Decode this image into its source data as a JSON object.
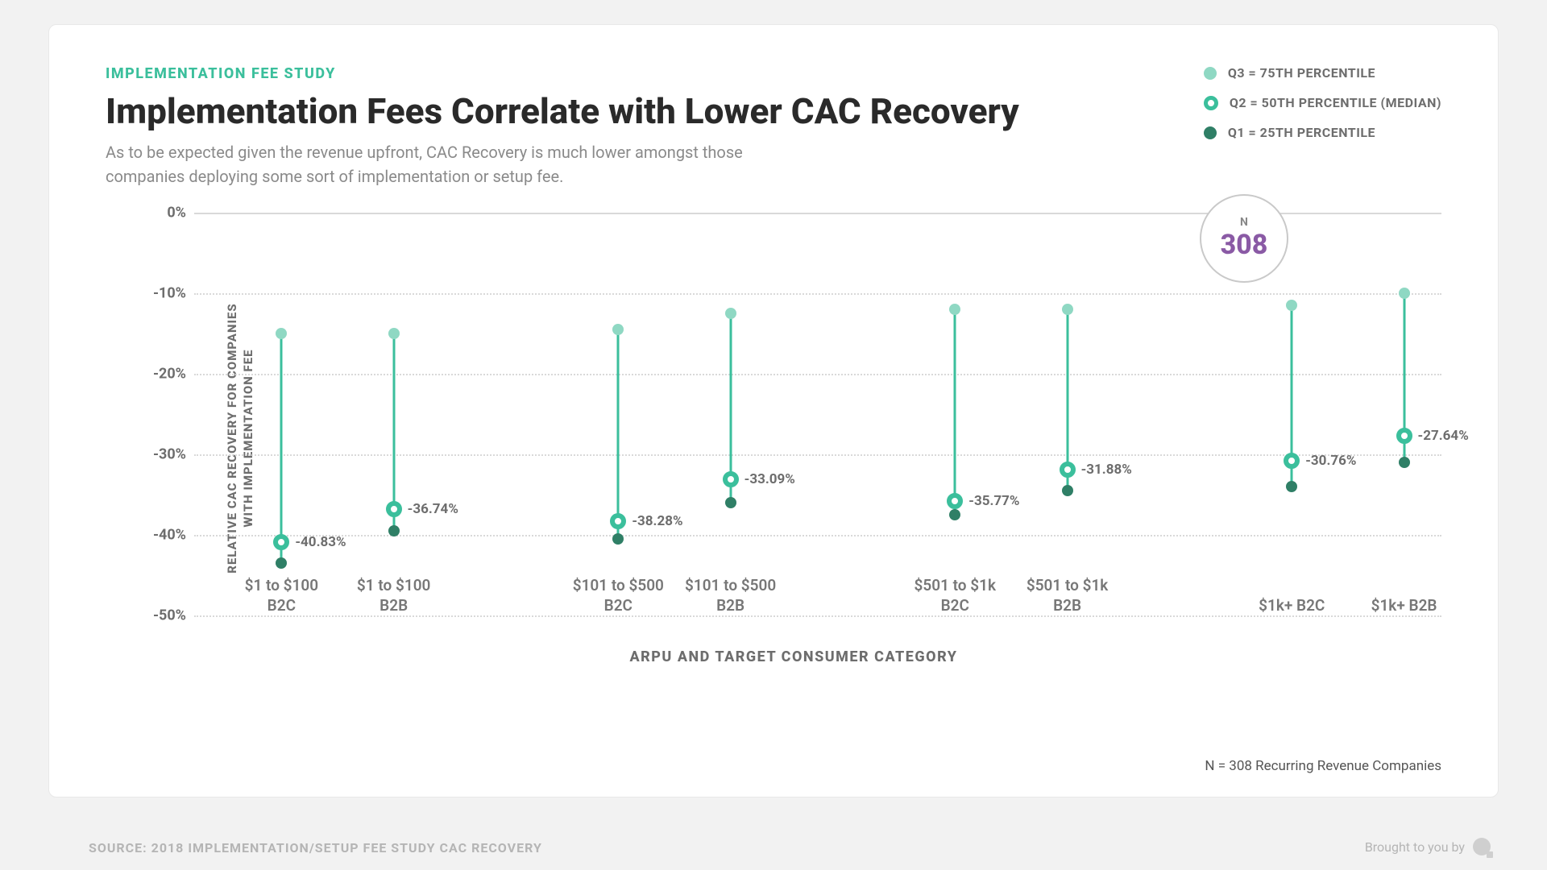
{
  "eyebrow": "IMPLEMENTATION FEE STUDY",
  "title": "Implementation Fees Correlate with Lower CAC Recovery",
  "subtitle": "As to be expected given the revenue upfront, CAC Recovery is much lower amongst those companies deploying some sort of implementation or setup fee.",
  "legend": {
    "q3": "Q3 = 75TH PERCENTILE",
    "q2": "Q2 = 50TH PERCENTILE (MEDIAN)",
    "q1": "Q1 = 25TH PERCENTILE"
  },
  "n_badge": {
    "label": "N",
    "value": "308"
  },
  "footnote": "N = 308 Recurring Revenue Companies",
  "source": "SOURCE: 2018 IMPLEMENTATION/SETUP FEE STUDY CAC RECOVERY",
  "brought": "Brought to you by",
  "chart": {
    "type": "range-dot",
    "yaxis_label_line1": "RELATIVE CAC RECOVERY FOR COMPANIES",
    "yaxis_label_line2": "WITH IMPLEMENTATION FEE",
    "xaxis_label": "ARPU AND TARGET CONSUMER CATEGORY",
    "ylim": [
      -50,
      0
    ],
    "yticks": [
      0,
      -10,
      -20,
      -30,
      -40,
      -50
    ],
    "ytick_labels": [
      "0%",
      "-10%",
      "-20%",
      "-30%",
      "-40%",
      "-50%"
    ],
    "grid_color": "#d9d9d9",
    "line_color": "#3bbf9c",
    "q3_color": "#8fd8c3",
    "q2_ring_color": "#3bbf9c",
    "q1_color": "#2f7f66",
    "background_color": "#ffffff",
    "group_gap_after": [
      1,
      3,
      5
    ],
    "series": [
      {
        "cat_line1": "$1 to $100",
        "cat_line2": "B2C",
        "q3": -15.0,
        "q2": -40.83,
        "q1": -43.5,
        "label": "-40.83%",
        "xpos": 7
      },
      {
        "cat_line1": "$1 to $100",
        "cat_line2": "B2B",
        "q3": -15.0,
        "q2": -36.74,
        "q1": -39.5,
        "label": "-36.74%",
        "xpos": 16
      },
      {
        "cat_line1": "$101 to $500",
        "cat_line2": "B2C",
        "q3": -14.5,
        "q2": -38.28,
        "q1": -40.5,
        "label": "-38.28%",
        "xpos": 34
      },
      {
        "cat_line1": "$101 to $500",
        "cat_line2": "B2B",
        "q3": -12.5,
        "q2": -33.09,
        "q1": -36.0,
        "label": "-33.09%",
        "xpos": 43
      },
      {
        "cat_line1": "$501 to $1k",
        "cat_line2": "B2C",
        "q3": -12.0,
        "q2": -35.77,
        "q1": -37.5,
        "label": "-35.77%",
        "xpos": 61
      },
      {
        "cat_line1": "$501 to $1k",
        "cat_line2": "B2B",
        "q3": -12.0,
        "q2": -31.88,
        "q1": -34.5,
        "label": "-31.88%",
        "xpos": 70
      },
      {
        "cat_line1": "$1k+ B2C",
        "cat_line2": "",
        "q3": -11.5,
        "q2": -30.76,
        "q1": -34.0,
        "label": "-30.76%",
        "xpos": 88
      },
      {
        "cat_line1": "$1k+ B2B",
        "cat_line2": "",
        "q3": -10.0,
        "q2": -27.64,
        "q1": -31.0,
        "label": "-27.64%",
        "xpos": 97
      }
    ]
  }
}
